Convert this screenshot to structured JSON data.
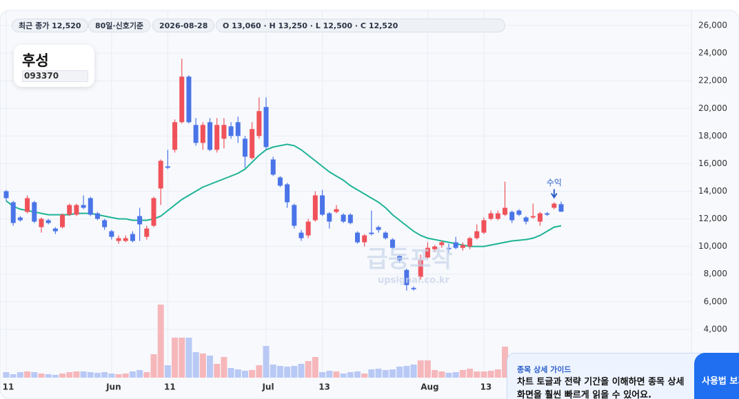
{
  "ui": {
    "pills": [
      "최근 종가 12,520",
      "80일·신호기준",
      "2026-08-28",
      "O 13,060 · H 13,250 · L 12,500 · C 12,520"
    ],
    "stock": {
      "name": "후성",
      "code": "093370"
    },
    "watermark": {
      "title": "급등포착",
      "site": "upsignal.co.kr"
    },
    "guide": {
      "title": "종목 상세 가이드",
      "body": "차트 토글과 전략 기간을 이해하면 종목 상세 화면을 훨씬 빠르게 읽을 수 있어요.",
      "button": "사용법 보기"
    }
  },
  "chart_data": {
    "type": "candlestick",
    "categories": [
      "11",
      null,
      null,
      null,
      null,
      null,
      null,
      null,
      null,
      null,
      null,
      null,
      null,
      null,
      null,
      "Jun",
      null,
      null,
      null,
      null,
      null,
      null,
      null,
      "11",
      null,
      null,
      null,
      null,
      null,
      null,
      null,
      null,
      null,
      null,
      null,
      null,
      null,
      "Jul",
      null,
      null,
      null,
      null,
      null,
      null,
      null,
      "13",
      null,
      null,
      null,
      null,
      null,
      null,
      null,
      null,
      null,
      null,
      null,
      null,
      null,
      null,
      "Aug",
      null,
      null,
      null,
      null,
      null,
      null,
      null,
      "13",
      null,
      null,
      null,
      null,
      null,
      null,
      null,
      null,
      null,
      null,
      null
    ],
    "open": [
      14000,
      13200,
      12100,
      12500,
      13200,
      11400,
      11900,
      11300,
      11400,
      12300,
      12300,
      13000,
      13500,
      12400,
      11900,
      11100,
      10400,
      10400,
      10900,
      12200,
      10700,
      11500,
      14200,
      15800,
      17000,
      19000,
      22300,
      18800,
      17500,
      19000,
      17000,
      17800,
      18700,
      19000,
      17800,
      16400,
      18000,
      20100,
      16300,
      15000,
      14500,
      13000,
      11000,
      10800,
      11900,
      13700,
      12400,
      12500,
      12300,
      12300,
      11000,
      10300,
      11000,
      11400,
      11000,
      10500,
      9300,
      8300,
      7000,
      7800,
      9200,
      9800,
      10100,
      9900,
      10300,
      9900,
      10000,
      10600,
      11000,
      12000,
      12000,
      12300,
      12500,
      12600,
      12100,
      12100,
      11800,
      12400,
      12800,
      13060
    ],
    "high": [
      14100,
      13300,
      12200,
      13700,
      13300,
      12100,
      12000,
      11400,
      12400,
      13100,
      13100,
      13700,
      13600,
      12500,
      12000,
      11200,
      10800,
      10800,
      11100,
      12800,
      11500,
      13600,
      16300,
      17000,
      19200,
      23600,
      22400,
      19300,
      19000,
      19300,
      19300,
      19300,
      19000,
      19400,
      18000,
      19000,
      20800,
      20800,
      16500,
      15100,
      14600,
      13100,
      11200,
      12000,
      14000,
      14100,
      12500,
      13000,
      12400,
      12400,
      11100,
      10900,
      12600,
      11500,
      11100,
      10600,
      9400,
      8400,
      7100,
      9400,
      10300,
      10100,
      10400,
      10200,
      10700,
      10300,
      10700,
      11600,
      12100,
      12600,
      12600,
      14700,
      12600,
      12700,
      12200,
      13100,
      12500,
      12500,
      13200,
      13250
    ],
    "low": [
      13300,
      11500,
      11800,
      12400,
      11700,
      11000,
      11600,
      10900,
      11300,
      12200,
      12200,
      12700,
      12200,
      11900,
      11200,
      10500,
      10200,
      10300,
      10300,
      10400,
      10500,
      11400,
      13000,
      15600,
      16800,
      18900,
      18900,
      17300,
      17000,
      16900,
      16800,
      17100,
      17800,
      17500,
      15700,
      16300,
      17800,
      17000,
      15100,
      14300,
      12800,
      11300,
      10400,
      10600,
      11800,
      12200,
      11300,
      12400,
      11700,
      11600,
      10200,
      10000,
      10800,
      11000,
      10500,
      9800,
      8800,
      6800,
      6800,
      7600,
      9100,
      9600,
      9900,
      9500,
      9800,
      9700,
      9800,
      10500,
      10900,
      11900,
      11900,
      12200,
      11700,
      12200,
      11600,
      12000,
      11500,
      12200,
      12700,
      12500
    ],
    "close": [
      13500,
      11700,
      11900,
      13500,
      11800,
      12000,
      11700,
      11100,
      12300,
      13000,
      13000,
      12800,
      12300,
      12000,
      11400,
      10700,
      10600,
      10600,
      10400,
      11600,
      11300,
      13500,
      16200,
      15700,
      19000,
      22300,
      19000,
      17500,
      18800,
      17000,
      18800,
      18800,
      18000,
      18000,
      16500,
      18500,
      19800,
      17200,
      15200,
      14400,
      13200,
      11500,
      10600,
      11800,
      13700,
      12300,
      11800,
      12700,
      11800,
      11700,
      10300,
      10800,
      10900,
      11200,
      10600,
      9900,
      9000,
      7200,
      6900,
      9000,
      9900,
      10000,
      10300,
      9800,
      9900,
      10100,
      10600,
      11100,
      11900,
      12400,
      12400,
      12800,
      11900,
      12300,
      11800,
      12200,
      12400,
      12300,
      13100,
      12520
    ],
    "volume": [
      8,
      5,
      8,
      9,
      8,
      6,
      5,
      4,
      6,
      8,
      9,
      9,
      8,
      7,
      8,
      6,
      5,
      6,
      9,
      11,
      8,
      34,
      106,
      18,
      58,
      58,
      58,
      37,
      35,
      32,
      20,
      30,
      14,
      12,
      10,
      11,
      18,
      46,
      19,
      17,
      16,
      17,
      20,
      24,
      30,
      8,
      10,
      9,
      6,
      8,
      9,
      6,
      12,
      13,
      11,
      12,
      16,
      17,
      19,
      25,
      25,
      11,
      9,
      7,
      8,
      11,
      13,
      9,
      9,
      10,
      12,
      45,
      12,
      12,
      12,
      12,
      12,
      12,
      12,
      12
    ],
    "up_color": "#f0525a",
    "down_color": "#4a74e8",
    "series": [
      {
        "color": "#1db394",
        "values": [
          13300,
          12900,
          12700,
          12600,
          12500,
          12400,
          12300,
          12300,
          12300,
          12300,
          12400,
          12400,
          12400,
          12300,
          12200,
          12100,
          12000,
          12000,
          11900,
          11900,
          11900,
          12000,
          12200,
          12600,
          13000,
          13400,
          13700,
          14000,
          14300,
          14500,
          14700,
          14900,
          15100,
          15300,
          15600,
          16100,
          16600,
          17000,
          17200,
          17300,
          17400,
          17300,
          17000,
          16600,
          16200,
          15800,
          15400,
          15100,
          14800,
          14400,
          14100,
          13800,
          13500,
          13200,
          12800,
          12300,
          11900,
          11500,
          11100,
          10800,
          10600,
          10500,
          10400,
          10300,
          10200,
          10100,
          10000,
          10000,
          10000,
          10100,
          10200,
          10300,
          10400,
          10450,
          10500,
          10600,
          10800,
          11100,
          11400,
          11500
        ]
      }
    ],
    "annotations": [
      {
        "index": 78,
        "text": "수익"
      }
    ],
    "ylim": [
      500,
      27100
    ],
    "yticks": [
      {
        "value": 4000,
        "label": "4,000"
      },
      {
        "value": 6000,
        "label": "6,000"
      },
      {
        "value": 8000,
        "label": "8,000"
      },
      {
        "value": 10000,
        "label": "10,000"
      },
      {
        "value": 12000,
        "label": "12,000"
      },
      {
        "value": 14000,
        "label": "14,000"
      },
      {
        "value": 16000,
        "label": "16,000"
      },
      {
        "value": 18000,
        "label": "18,000"
      },
      {
        "value": 20000,
        "label": "20,000"
      },
      {
        "value": 22000,
        "label": "22,000"
      },
      {
        "value": 24000,
        "label": "24,000"
      },
      {
        "value": 26000,
        "label": "26,000"
      }
    ],
    "grid": true
  }
}
